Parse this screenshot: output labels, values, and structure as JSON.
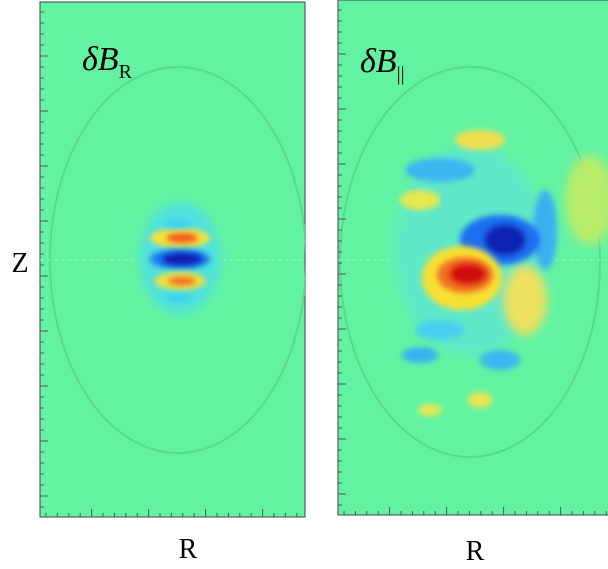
{
  "panels": [
    {
      "title": "δB",
      "title_sub": "R",
      "x_label": "R",
      "y_label": "Z"
    },
    {
      "title": "δB",
      "title_sub": "||",
      "x_label": "R"
    }
  ]
}
